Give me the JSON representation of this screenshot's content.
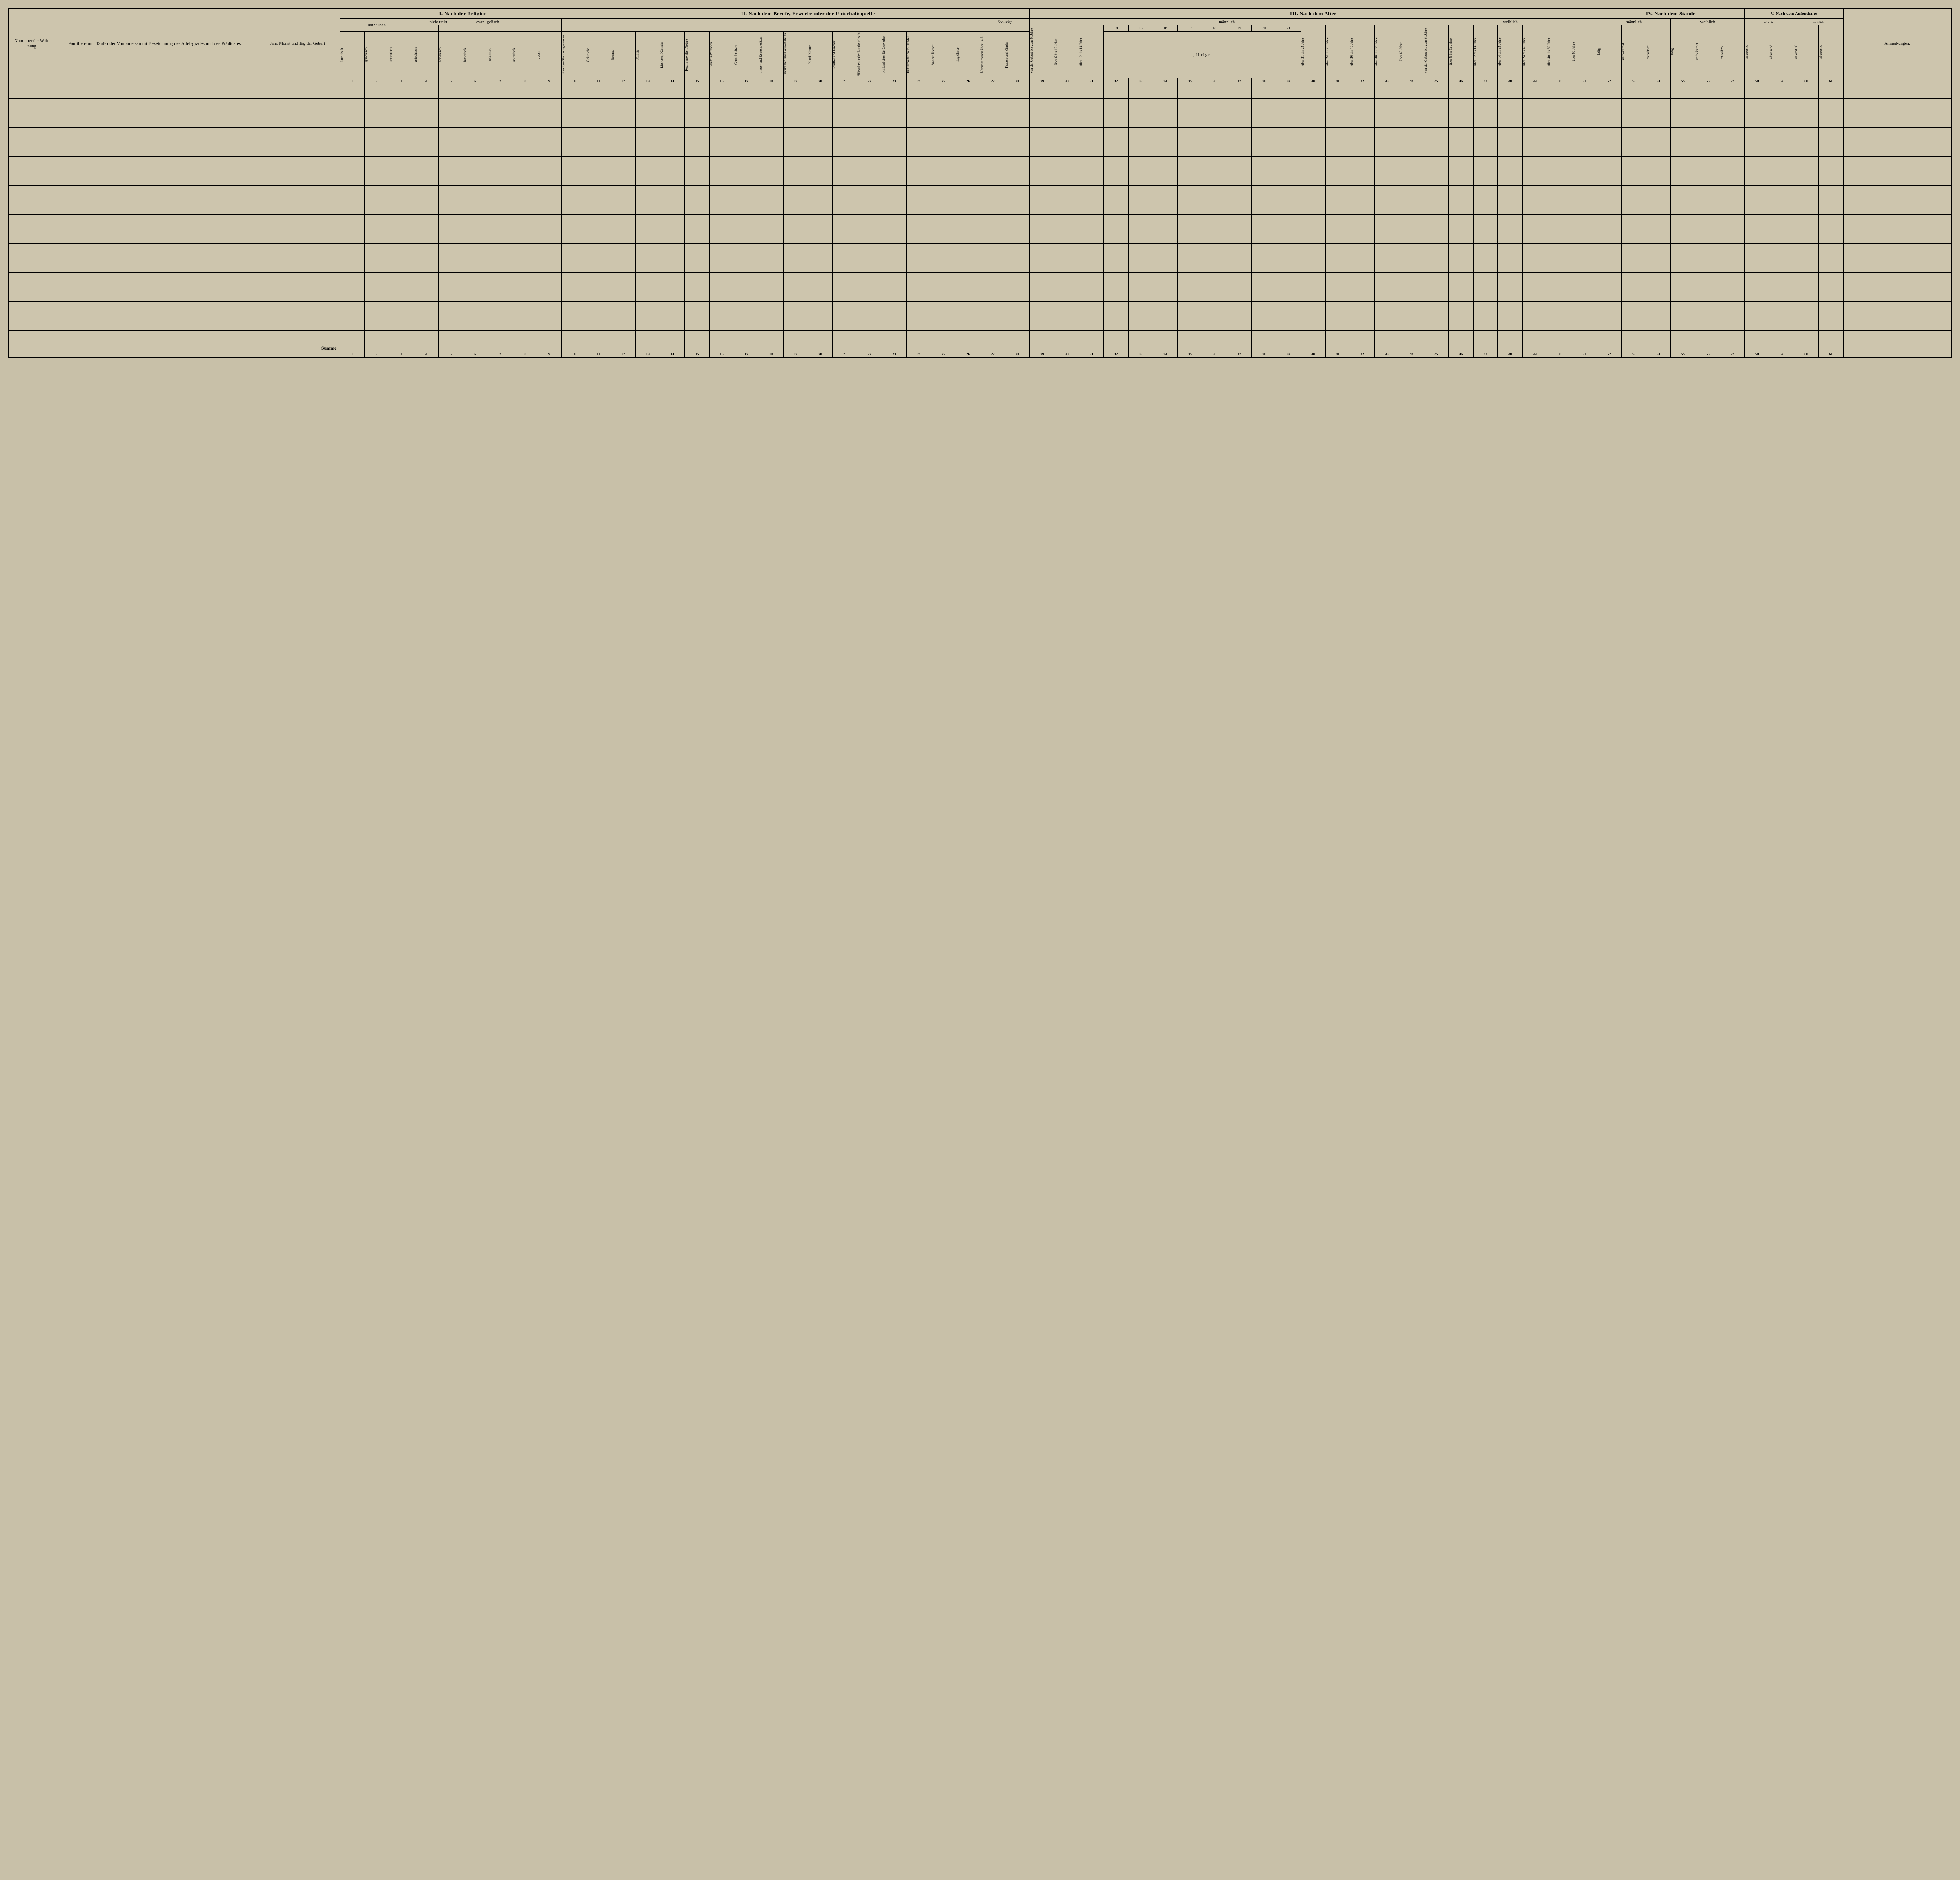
{
  "left": {
    "nummer": "Num-\nmer\nder\nWoh-\nnung",
    "name": "Familien-\nund Tauf- oder Vorname\nsammt\nBezeichnung des Adelsgrades\nund des Prädicates.",
    "birth": "Jahr, Monat\nund\nTag\nder Geburt",
    "summe": "Summe"
  },
  "sections": {
    "I": "I. Nach der Religion",
    "II": "II. Nach dem Berufe, Erwerbe oder der\nUnterhaltsquelle",
    "III": "III. Nach dem Alter",
    "IV": "IV. Nach dem Stande",
    "V": "V. Nach dem\nAufenthalte",
    "anm": "Anmerkungen."
  },
  "relig": {
    "kath": "katholisch",
    "nicht": "nicht\nunirt",
    "evan": "evan-\ngelisch",
    "cols": [
      "lateinisch",
      "griechisch",
      "armenisch",
      "griechisch",
      "armenisch",
      "lutherisch",
      "reformirt",
      "unitarisch",
      "Juden",
      "Sonstige Glaubensgenossen"
    ]
  },
  "beruf": {
    "sonstige": "Son-\nstige",
    "cols": [
      "Geistliche",
      "Beamte",
      "Militär",
      "Literaten, Künstler",
      "Rechtsanwälte, Notare",
      "Sanitäts-Personen",
      "Grundbesitzer",
      "Haus- und Rentenbesitzer",
      "Fabrikanten und Gewerbsleute",
      "Handelsleute",
      "Schiffer und Fischer",
      "Hilfsarbeiter der Landwirthschaft",
      "Hilfsarbeiter für Gewerbe",
      "Hilfsarbeiter beim Handel",
      "Andere Diener",
      "Taglöhner",
      "Mannspersonen über 14 J.",
      "Frauen und Kinder"
    ]
  },
  "alter": {
    "m": "männlich",
    "w": "weiblich",
    "jahrige": "jährige",
    "mcols_a": [
      "von der Geburt bis zum 6. Jahre",
      "über 6 bis 12 Jahre",
      "über 12 bis 14 Jahre"
    ],
    "ages": [
      "14",
      "15",
      "16",
      "17",
      "18",
      "19",
      "20",
      "21"
    ],
    "mcols_b": [
      "über 21 bis 24 Jahre",
      "über 24 bis 26 Jahre",
      "über 26 bis 40 Jahre",
      "über 40 bis 60 Jahre",
      "über 60 Jahre"
    ],
    "wcols": [
      "von der Geburt bis zum 6. Jahre",
      "über 6 bis 12 Jahre",
      "über 12 bis 14 Jahre",
      "über 14 bis 24 Jahre",
      "über 24 bis 40 Jahre",
      "über 40 bis 60 Jahre",
      "über 60 Jahre"
    ]
  },
  "stand": {
    "m": "männlich",
    "w": "weiblich",
    "cols": [
      "ledig",
      "verheirathet",
      "verwitwet"
    ]
  },
  "aufenthalt": {
    "m": "männlich",
    "w": "weiblich",
    "cols": [
      "anwesend",
      "abwesend"
    ]
  },
  "style": {
    "background_color": "#cdc5ad",
    "border_color": "#000000",
    "text_color": "#000000",
    "num_data_rows": 18,
    "num_columns": 61,
    "font_family": "serif"
  }
}
